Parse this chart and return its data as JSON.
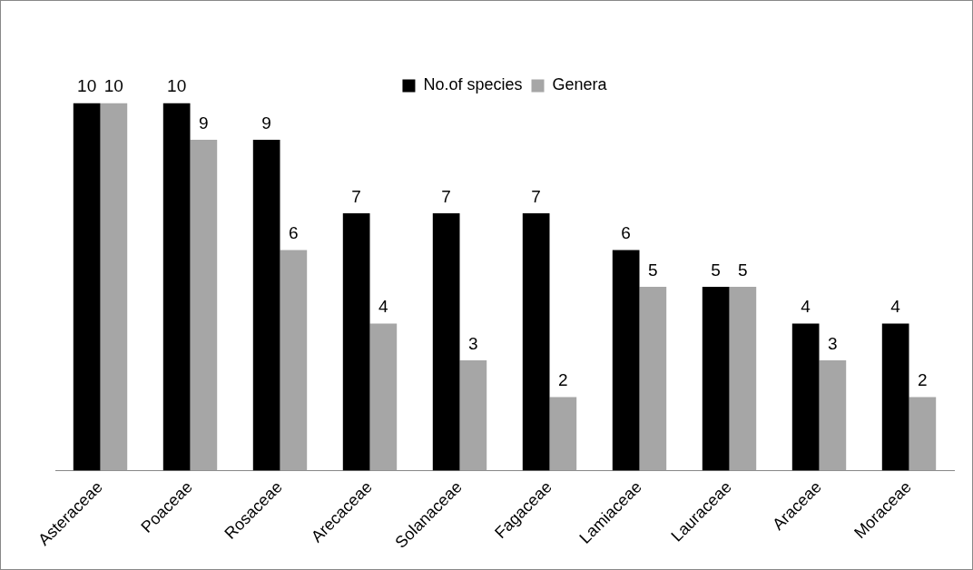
{
  "chart_data": {
    "type": "bar",
    "categories": [
      "Asteraceae",
      "Poaceae",
      "Rosaceae",
      "Arecaceae",
      "Solanaceae",
      "Fagaceae",
      "Lamiaceae",
      "Lauraceae",
      "Araceae",
      "Moraceae"
    ],
    "series": [
      {
        "name": "No.of species",
        "color": "#000000",
        "values": [
          10,
          10,
          9,
          7,
          7,
          7,
          6,
          5,
          4,
          4
        ]
      },
      {
        "name": "Genera",
        "color": "#a6a6a6",
        "values": [
          10,
          9,
          6,
          4,
          3,
          2,
          5,
          5,
          3,
          2
        ]
      }
    ],
    "data_labels": true,
    "legend": "top",
    "grid": false,
    "tick_labels": "x"
  }
}
